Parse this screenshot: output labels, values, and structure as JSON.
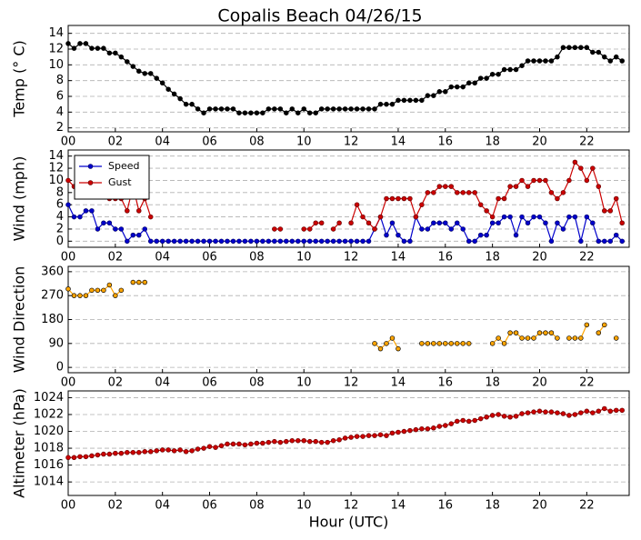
{
  "title": "Copalis Beach 04/26/15",
  "chart_data": [
    {
      "type": "line",
      "ylabel": "Temp (° C)",
      "color": "#000000",
      "grid": true,
      "ylim": [
        1.5,
        15
      ],
      "yticks": [
        2,
        4,
        6,
        8,
        10,
        12,
        14
      ],
      "xlim": [
        0,
        23.8
      ],
      "xticks": [
        {
          "value": 0,
          "label": "00"
        },
        {
          "value": 2,
          "label": "02"
        },
        {
          "value": 4,
          "label": "04"
        },
        {
          "value": 6,
          "label": "06"
        },
        {
          "value": 8,
          "label": "08"
        },
        {
          "value": 10,
          "label": "10"
        },
        {
          "value": 12,
          "label": "12"
        },
        {
          "value": 14,
          "label": "14"
        },
        {
          "value": 16,
          "label": "16"
        },
        {
          "value": 18,
          "label": "18"
        },
        {
          "value": 20,
          "label": "20"
        },
        {
          "value": 22,
          "label": "22"
        }
      ],
      "x": [
        0,
        0.25,
        0.5,
        0.75,
        1,
        1.25,
        1.5,
        1.75,
        2,
        2.25,
        2.5,
        2.75,
        3,
        3.25,
        3.5,
        3.75,
        4,
        4.25,
        4.5,
        4.75,
        5,
        5.25,
        5.5,
        5.75,
        6,
        6.25,
        6.5,
        6.75,
        7,
        7.25,
        7.5,
        7.75,
        8,
        8.25,
        8.5,
        8.75,
        9,
        9.25,
        9.5,
        9.75,
        10,
        10.25,
        10.5,
        10.75,
        11,
        11.25,
        11.5,
        11.75,
        12,
        12.25,
        12.5,
        12.75,
        13,
        13.25,
        13.5,
        13.75,
        14,
        14.25,
        14.5,
        14.75,
        15,
        15.25,
        15.5,
        15.75,
        16,
        16.25,
        16.5,
        16.75,
        17,
        17.25,
        17.5,
        17.75,
        18,
        18.25,
        18.5,
        18.75,
        19,
        19.25,
        19.5,
        19.75,
        20,
        20.25,
        20.5,
        20.75,
        21,
        21.25,
        21.5,
        21.75,
        22,
        22.25,
        22.5,
        22.75,
        23,
        23.25,
        23.5
      ],
      "values": [
        12.7,
        12.1,
        12.7,
        12.7,
        12.1,
        12.1,
        12.1,
        11.5,
        11.5,
        11,
        10.4,
        9.8,
        9.2,
        8.9,
        8.9,
        8.3,
        7.7,
        6.9,
        6.3,
        5.7,
        5,
        5,
        4.4,
        3.9,
        4.4,
        4.4,
        4.4,
        4.4,
        4.4,
        3.9,
        3.9,
        3.9,
        3.9,
        3.9,
        4.4,
        4.4,
        4.4,
        3.9,
        4.4,
        3.9,
        4.4,
        3.9,
        3.9,
        4.4,
        4.4,
        4.4,
        4.4,
        4.4,
        4.4,
        4.4,
        4.4,
        4.4,
        4.4,
        5,
        5,
        5,
        5.5,
        5.5,
        5.5,
        5.5,
        5.5,
        6.1,
        6.1,
        6.6,
        6.6,
        7.2,
        7.2,
        7.2,
        7.7,
        7.7,
        8.3,
        8.3,
        8.8,
        8.8,
        9.4,
        9.4,
        9.4,
        9.9,
        10.5,
        10.5,
        10.5,
        10.5,
        10.5,
        11,
        12.2,
        12.2,
        12.2,
        12.2,
        12.2,
        11.6,
        11.6,
        11,
        10.5,
        11,
        10.5
      ]
    },
    {
      "type": "line",
      "ylabel": "Wind (mph)",
      "grid": true,
      "legend": "upper left",
      "ylim": [
        -1,
        15
      ],
      "yticks": [
        0,
        2,
        4,
        6,
        8,
        10,
        12,
        14
      ],
      "xlim": [
        0,
        23.8
      ],
      "xticks": [
        {
          "value": 0,
          "label": "00"
        },
        {
          "value": 2,
          "label": "02"
        },
        {
          "value": 4,
          "label": "04"
        },
        {
          "value": 6,
          "label": "06"
        },
        {
          "value": 8,
          "label": "08"
        },
        {
          "value": 10,
          "label": "10"
        },
        {
          "value": 12,
          "label": "12"
        },
        {
          "value": 14,
          "label": "14"
        },
        {
          "value": 16,
          "label": "16"
        },
        {
          "value": 18,
          "label": "18"
        },
        {
          "value": 20,
          "label": "20"
        },
        {
          "value": 22,
          "label": "22"
        }
      ],
      "x": [
        0,
        0.25,
        0.5,
        0.75,
        1,
        1.25,
        1.5,
        1.75,
        2,
        2.25,
        2.5,
        2.75,
        3,
        3.25,
        3.5,
        3.75,
        4,
        4.25,
        4.5,
        4.75,
        5,
        5.25,
        5.5,
        5.75,
        6,
        6.25,
        6.5,
        6.75,
        7,
        7.25,
        7.5,
        7.75,
        8,
        8.25,
        8.5,
        8.75,
        9,
        9.25,
        9.5,
        9.75,
        10,
        10.25,
        10.5,
        10.75,
        11,
        11.25,
        11.5,
        11.75,
        12,
        12.25,
        12.5,
        12.75,
        13,
        13.25,
        13.5,
        13.75,
        14,
        14.25,
        14.5,
        14.75,
        15,
        15.25,
        15.5,
        15.75,
        16,
        16.25,
        16.5,
        16.75,
        17,
        17.25,
        17.5,
        17.75,
        18,
        18.25,
        18.5,
        18.75,
        19,
        19.25,
        19.5,
        19.75,
        20,
        20.25,
        20.5,
        20.75,
        21,
        21.25,
        21.5,
        21.75,
        22,
        22.25,
        22.5,
        22.75,
        23,
        23.25,
        23.5
      ],
      "series": [
        {
          "name": "Speed",
          "color": "#0000cc",
          "values": [
            6,
            4,
            4,
            5,
            5,
            2,
            3,
            3,
            2,
            2,
            0,
            1,
            1,
            2,
            0,
            0,
            0,
            0,
            0,
            0,
            0,
            0,
            0,
            0,
            0,
            0,
            0,
            0,
            0,
            0,
            0,
            0,
            0,
            0,
            0,
            0,
            0,
            0,
            0,
            0,
            0,
            0,
            0,
            0,
            0,
            0,
            0,
            0,
            0,
            0,
            0,
            0,
            2,
            4,
            1,
            3,
            1,
            0,
            0,
            4,
            2,
            2,
            3,
            3,
            3,
            2,
            3,
            2,
            0,
            0,
            1,
            1,
            3,
            3,
            4,
            4,
            1,
            4,
            3,
            4,
            4,
            3,
            0,
            3,
            2,
            4,
            4,
            0,
            4,
            3,
            0,
            0,
            0,
            1,
            0
          ]
        },
        {
          "name": "Gust",
          "color": "#cc0000",
          "values": [
            10,
            9,
            9,
            9,
            9,
            9,
            8,
            7,
            7,
            7,
            5,
            9,
            5,
            7,
            4,
            null,
            null,
            null,
            null,
            null,
            null,
            null,
            null,
            null,
            null,
            null,
            null,
            null,
            null,
            null,
            null,
            null,
            null,
            null,
            null,
            2,
            2,
            null,
            null,
            null,
            2,
            2,
            3,
            3,
            null,
            2,
            3,
            null,
            3,
            6,
            4,
            3,
            2,
            4,
            7,
            7,
            7,
            7,
            7,
            4,
            6,
            8,
            8,
            9,
            9,
            9,
            8,
            8,
            8,
            8,
            6,
            5,
            4,
            7,
            7,
            9,
            9,
            10,
            9,
            10,
            10,
            10,
            8,
            7,
            8,
            10,
            13,
            12,
            10,
            12,
            9,
            5,
            5,
            7,
            3
          ]
        }
      ]
    },
    {
      "type": "line",
      "ylabel": "Wind Direction",
      "color": "#ffa500",
      "grid": true,
      "ylim": [
        -20,
        380
      ],
      "yticks": [
        0,
        90,
        180,
        270,
        360
      ],
      "xlim": [
        0,
        23.8
      ],
      "xticks": [
        {
          "value": 0,
          "label": "00"
        },
        {
          "value": 2,
          "label": "02"
        },
        {
          "value": 4,
          "label": "04"
        },
        {
          "value": 6,
          "label": "06"
        },
        {
          "value": 8,
          "label": "08"
        },
        {
          "value": 10,
          "label": "10"
        },
        {
          "value": 12,
          "label": "12"
        },
        {
          "value": 14,
          "label": "14"
        },
        {
          "value": 16,
          "label": "16"
        },
        {
          "value": 18,
          "label": "18"
        },
        {
          "value": 20,
          "label": "20"
        },
        {
          "value": 22,
          "label": "22"
        }
      ],
      "x": [
        0,
        0.25,
        0.5,
        0.75,
        1,
        1.25,
        1.5,
        1.75,
        2,
        2.25,
        2.5,
        2.75,
        3,
        3.25,
        3.5,
        3.75,
        4,
        4.25,
        4.5,
        4.75,
        5,
        5.25,
        5.5,
        5.75,
        6,
        6.25,
        6.5,
        6.75,
        7,
        7.25,
        7.5,
        7.75,
        8,
        8.25,
        8.5,
        8.75,
        9,
        9.25,
        9.5,
        9.75,
        10,
        10.25,
        10.5,
        10.75,
        11,
        11.25,
        11.5,
        11.75,
        12,
        12.25,
        12.5,
        12.75,
        13,
        13.25,
        13.5,
        13.75,
        14,
        14.25,
        14.5,
        14.75,
        15,
        15.25,
        15.5,
        15.75,
        16,
        16.25,
        16.5,
        16.75,
        17,
        17.25,
        17.5,
        17.75,
        18,
        18.25,
        18.5,
        18.75,
        19,
        19.25,
        19.5,
        19.75,
        20,
        20.25,
        20.5,
        20.75,
        21,
        21.25,
        21.5,
        21.75,
        22,
        22.25,
        22.5,
        22.75,
        23,
        23.25,
        23.5
      ],
      "values": [
        295,
        270,
        270,
        270,
        290,
        290,
        290,
        310,
        270,
        290,
        null,
        320,
        320,
        320,
        null,
        null,
        null,
        null,
        null,
        null,
        null,
        null,
        null,
        null,
        null,
        null,
        null,
        null,
        null,
        null,
        null,
        null,
        null,
        null,
        null,
        null,
        null,
        null,
        null,
        null,
        null,
        null,
        null,
        null,
        null,
        null,
        null,
        null,
        null,
        null,
        null,
        null,
        90,
        70,
        90,
        110,
        70,
        null,
        null,
        null,
        90,
        90,
        90,
        90,
        90,
        90,
        90,
        90,
        90,
        null,
        null,
        null,
        90,
        110,
        90,
        130,
        130,
        110,
        110,
        110,
        130,
        130,
        130,
        110,
        null,
        110,
        110,
        110,
        160,
        null,
        130,
        160,
        null,
        110,
        null
      ]
    },
    {
      "type": "line",
      "ylabel": "Altimeter (hPa)",
      "xlabel": "Hour (UTC)",
      "color": "#cc0000",
      "grid": true,
      "ylim": [
        1012.4,
        1024.8
      ],
      "yticks": [
        1014,
        1016,
        1018,
        1020,
        1022,
        1024
      ],
      "xlim": [
        0,
        23.8
      ],
      "xticks": [
        {
          "value": 0,
          "label": "00"
        },
        {
          "value": 2,
          "label": "02"
        },
        {
          "value": 4,
          "label": "04"
        },
        {
          "value": 6,
          "label": "06"
        },
        {
          "value": 8,
          "label": "08"
        },
        {
          "value": 10,
          "label": "10"
        },
        {
          "value": 12,
          "label": "12"
        },
        {
          "value": 14,
          "label": "14"
        },
        {
          "value": 16,
          "label": "16"
        },
        {
          "value": 18,
          "label": "18"
        },
        {
          "value": 20,
          "label": "20"
        },
        {
          "value": 22,
          "label": "22"
        }
      ],
      "x": [
        0,
        0.25,
        0.5,
        0.75,
        1,
        1.25,
        1.5,
        1.75,
        2,
        2.25,
        2.5,
        2.75,
        3,
        3.25,
        3.5,
        3.75,
        4,
        4.25,
        4.5,
        4.75,
        5,
        5.25,
        5.5,
        5.75,
        6,
        6.25,
        6.5,
        6.75,
        7,
        7.25,
        7.5,
        7.75,
        8,
        8.25,
        8.5,
        8.75,
        9,
        9.25,
        9.5,
        9.75,
        10,
        10.25,
        10.5,
        10.75,
        11,
        11.25,
        11.5,
        11.75,
        12,
        12.25,
        12.5,
        12.75,
        13,
        13.25,
        13.5,
        13.75,
        14,
        14.25,
        14.5,
        14.75,
        15,
        15.25,
        15.5,
        15.75,
        16,
        16.25,
        16.5,
        16.75,
        17,
        17.25,
        17.5,
        17.75,
        18,
        18.25,
        18.5,
        18.75,
        19,
        19.25,
        19.5,
        19.75,
        20,
        20.25,
        20.5,
        20.75,
        21,
        21.25,
        21.5,
        21.75,
        22,
        22.25,
        22.5,
        22.75,
        23,
        23.25,
        23.5
      ],
      "values": [
        1016.9,
        1016.9,
        1017.0,
        1017.0,
        1017.1,
        1017.2,
        1017.3,
        1017.3,
        1017.4,
        1017.4,
        1017.5,
        1017.5,
        1017.5,
        1017.6,
        1017.6,
        1017.7,
        1017.8,
        1017.8,
        1017.7,
        1017.8,
        1017.6,
        1017.7,
        1017.9,
        1018.0,
        1018.2,
        1018.1,
        1018.3,
        1018.5,
        1018.5,
        1018.5,
        1018.4,
        1018.5,
        1018.6,
        1018.6,
        1018.7,
        1018.8,
        1018.7,
        1018.8,
        1018.9,
        1018.9,
        1018.9,
        1018.8,
        1018.8,
        1018.7,
        1018.7,
        1018.9,
        1019.0,
        1019.2,
        1019.3,
        1019.4,
        1019.4,
        1019.5,
        1019.5,
        1019.6,
        1019.5,
        1019.8,
        1019.9,
        1020.0,
        1020.1,
        1020.2,
        1020.3,
        1020.3,
        1020.4,
        1020.6,
        1020.7,
        1020.9,
        1021.2,
        1021.3,
        1021.2,
        1021.3,
        1021.5,
        1021.7,
        1021.9,
        1022.0,
        1021.8,
        1021.7,
        1021.8,
        1022.1,
        1022.2,
        1022.3,
        1022.4,
        1022.3,
        1022.3,
        1022.2,
        1022.1,
        1021.9,
        1022.0,
        1022.2,
        1022.4,
        1022.2,
        1022.4,
        1022.7,
        1022.4,
        1022.5,
        1022.5
      ]
    }
  ]
}
